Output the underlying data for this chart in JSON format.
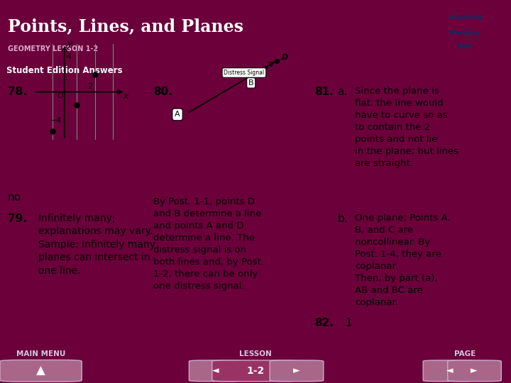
{
  "title": "Points, Lines, and Planes",
  "subtitle": "GEOMETRY LESSON 1-2",
  "section_header": "Student Edition Answers",
  "bg_header": "#6b003b",
  "bg_section": "#8888aa",
  "bg_content": "#ffffff",
  "bg_footer": "#6b003b",
  "footer_label_color": "#ccccdd",
  "text_color": "#000000",
  "answer_78_label": "78.",
  "answer_78_note": "no",
  "answer_79_label": "79.",
  "answer_79_text": "Infinitely many;\nexplanations may vary.\nSample: Infinitely many\nplanes can intersect in\none line.",
  "answer_80_label": "80.",
  "answer_80_text": "By Post. 1-1, points D\nand B determine a line\nand points A and D\ndetermine a line. The\ndistress signal is on\nboth lines and, by Post.\n1-2, there can be only\none distress signal.",
  "answer_81_label": "81.",
  "answer_81a_label": "a.",
  "answer_81a_text": "Since the plane is\nflat, the line would\nhave to curve so as\nto contain the 2\npoints and not lie\nin the plane; but lines\nare straight.",
  "answer_81b_label": "b.",
  "answer_81b_text": "One plane; Points A,\nB, and C are\nnoncollinear. By\nPost. 1-4, they are\ncoplanar.\nThen, by part (a),\nAB and BC are\ncoplanar.",
  "answer_82_label": "82.",
  "answer_82_text": "1",
  "footer_menu": "MAIN MENU",
  "footer_lesson": "LESSON",
  "footer_page": "PAGE",
  "footer_lesson_num": "1-2"
}
